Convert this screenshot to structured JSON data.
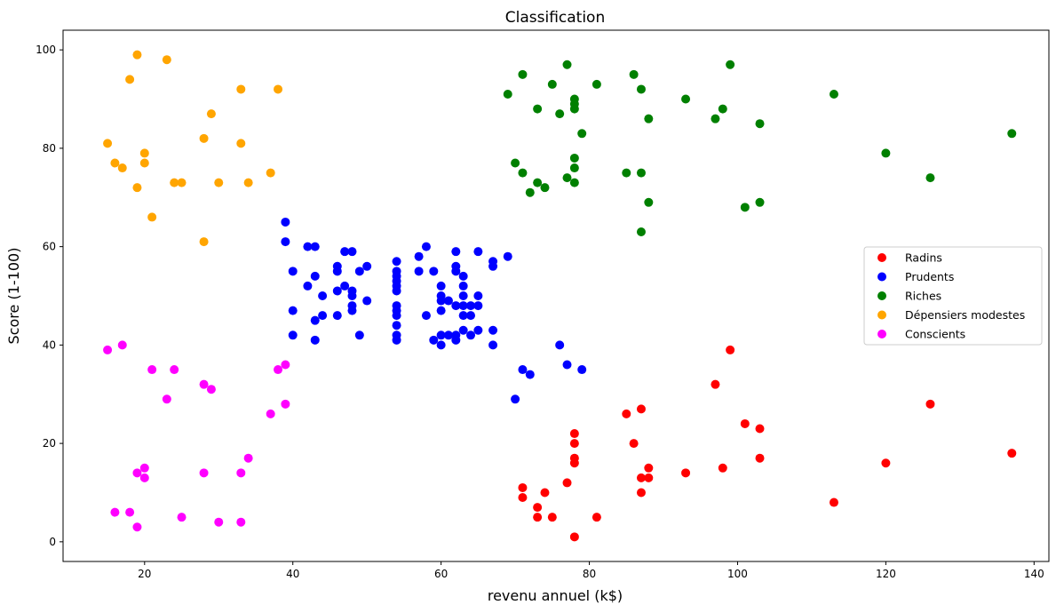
{
  "chart_data": {
    "type": "scatter",
    "title": "Classification",
    "xlabel": "revenu annuel (k$)",
    "ylabel": "Score (1-100)",
    "xlim": [
      9,
      142
    ],
    "ylim": [
      -4,
      104
    ],
    "xticks": [
      20,
      40,
      60,
      80,
      100,
      120,
      140
    ],
    "yticks": [
      0,
      20,
      40,
      60,
      80,
      100
    ],
    "grid": false,
    "legend": "center-right",
    "series": [
      {
        "name": "Radins",
        "color": "#ff0000",
        "points": [
          [
            71,
            11
          ],
          [
            71,
            9
          ],
          [
            73,
            5
          ],
          [
            73,
            7
          ],
          [
            74,
            10
          ],
          [
            75,
            5
          ],
          [
            77,
            12
          ],
          [
            78,
            22
          ],
          [
            78,
            20
          ],
          [
            78,
            17
          ],
          [
            78,
            16
          ],
          [
            78,
            1
          ],
          [
            81,
            5
          ],
          [
            85,
            26
          ],
          [
            86,
            20
          ],
          [
            87,
            27
          ],
          [
            87,
            13
          ],
          [
            87,
            10
          ],
          [
            88,
            13
          ],
          [
            88,
            15
          ],
          [
            93,
            14
          ],
          [
            97,
            32
          ],
          [
            98,
            15
          ],
          [
            99,
            39
          ],
          [
            101,
            24
          ],
          [
            103,
            23
          ],
          [
            103,
            17
          ],
          [
            113,
            8
          ],
          [
            120,
            16
          ],
          [
            126,
            28
          ],
          [
            137,
            18
          ]
        ]
      },
      {
        "name": "Prudents",
        "color": "#0000ff",
        "points": [
          [
            39,
            65
          ],
          [
            39,
            61
          ],
          [
            40,
            55
          ],
          [
            40,
            47
          ],
          [
            40,
            42
          ],
          [
            42,
            60
          ],
          [
            42,
            52
          ],
          [
            43,
            60
          ],
          [
            43,
            54
          ],
          [
            43,
            45
          ],
          [
            43,
            41
          ],
          [
            44,
            50
          ],
          [
            44,
            46
          ],
          [
            46,
            56
          ],
          [
            46,
            55
          ],
          [
            46,
            51
          ],
          [
            46,
            46
          ],
          [
            47,
            59
          ],
          [
            47,
            52
          ],
          [
            48,
            59
          ],
          [
            48,
            51
          ],
          [
            48,
            50
          ],
          [
            48,
            48
          ],
          [
            48,
            47
          ],
          [
            49,
            55
          ],
          [
            49,
            42
          ],
          [
            50,
            56
          ],
          [
            50,
            49
          ],
          [
            54,
            57
          ],
          [
            54,
            55
          ],
          [
            54,
            54
          ],
          [
            54,
            53
          ],
          [
            54,
            52
          ],
          [
            54,
            51
          ],
          [
            54,
            48
          ],
          [
            54,
            47
          ],
          [
            54,
            46
          ],
          [
            54,
            44
          ],
          [
            54,
            42
          ],
          [
            54,
            41
          ],
          [
            57,
            58
          ],
          [
            57,
            55
          ],
          [
            58,
            60
          ],
          [
            58,
            46
          ],
          [
            59,
            55
          ],
          [
            59,
            41
          ],
          [
            60,
            52
          ],
          [
            60,
            50
          ],
          [
            60,
            49
          ],
          [
            60,
            47
          ],
          [
            60,
            42
          ],
          [
            60,
            40
          ],
          [
            61,
            49
          ],
          [
            61,
            42
          ],
          [
            62,
            59
          ],
          [
            62,
            56
          ],
          [
            62,
            55
          ],
          [
            62,
            48
          ],
          [
            62,
            42
          ],
          [
            62,
            41
          ],
          [
            63,
            54
          ],
          [
            63,
            52
          ],
          [
            63,
            50
          ],
          [
            63,
            48
          ],
          [
            63,
            46
          ],
          [
            63,
            43
          ],
          [
            64,
            48
          ],
          [
            64,
            46
          ],
          [
            64,
            42
          ],
          [
            65,
            59
          ],
          [
            65,
            50
          ],
          [
            65,
            48
          ],
          [
            65,
            43
          ],
          [
            67,
            57
          ],
          [
            67,
            56
          ],
          [
            67,
            43
          ],
          [
            67,
            40
          ],
          [
            69,
            58
          ],
          [
            70,
            29
          ],
          [
            71,
            35
          ],
          [
            72,
            34
          ],
          [
            76,
            40
          ],
          [
            77,
            36
          ],
          [
            79,
            35
          ]
        ]
      },
      {
        "name": "Riches",
        "color": "#008000",
        "points": [
          [
            69,
            91
          ],
          [
            70,
            77
          ],
          [
            71,
            95
          ],
          [
            71,
            75
          ],
          [
            72,
            71
          ],
          [
            73,
            88
          ],
          [
            73,
            73
          ],
          [
            74,
            72
          ],
          [
            75,
            93
          ],
          [
            76,
            87
          ],
          [
            77,
            97
          ],
          [
            77,
            74
          ],
          [
            78,
            90
          ],
          [
            78,
            89
          ],
          [
            78,
            88
          ],
          [
            78,
            78
          ],
          [
            78,
            76
          ],
          [
            78,
            73
          ],
          [
            79,
            83
          ],
          [
            81,
            93
          ],
          [
            85,
            75
          ],
          [
            86,
            95
          ],
          [
            87,
            92
          ],
          [
            87,
            75
          ],
          [
            87,
            63
          ],
          [
            88,
            86
          ],
          [
            88,
            69
          ],
          [
            93,
            90
          ],
          [
            97,
            86
          ],
          [
            98,
            88
          ],
          [
            99,
            97
          ],
          [
            101,
            68
          ],
          [
            103,
            85
          ],
          [
            103,
            69
          ],
          [
            113,
            91
          ],
          [
            120,
            79
          ],
          [
            126,
            74
          ],
          [
            137,
            83
          ]
        ]
      },
      {
        "name": "Dépensiers modestes",
        "color": "#ffa500",
        "points": [
          [
            15,
            81
          ],
          [
            16,
            77
          ],
          [
            17,
            76
          ],
          [
            18,
            94
          ],
          [
            19,
            99
          ],
          [
            19,
            72
          ],
          [
            20,
            79
          ],
          [
            20,
            77
          ],
          [
            21,
            66
          ],
          [
            23,
            98
          ],
          [
            24,
            73
          ],
          [
            25,
            73
          ],
          [
            28,
            82
          ],
          [
            28,
            61
          ],
          [
            29,
            87
          ],
          [
            30,
            73
          ],
          [
            33,
            92
          ],
          [
            33,
            81
          ],
          [
            34,
            73
          ],
          [
            37,
            75
          ],
          [
            38,
            92
          ]
        ]
      },
      {
        "name": "Conscients",
        "color": "#ff00ff",
        "points": [
          [
            15,
            39
          ],
          [
            16,
            6
          ],
          [
            17,
            40
          ],
          [
            18,
            6
          ],
          [
            19,
            3
          ],
          [
            19,
            14
          ],
          [
            20,
            15
          ],
          [
            20,
            13
          ],
          [
            21,
            35
          ],
          [
            23,
            29
          ],
          [
            24,
            35
          ],
          [
            25,
            5
          ],
          [
            28,
            32
          ],
          [
            28,
            14
          ],
          [
            29,
            31
          ],
          [
            30,
            4
          ],
          [
            33,
            4
          ],
          [
            33,
            14
          ],
          [
            34,
            17
          ],
          [
            37,
            26
          ],
          [
            38,
            35
          ],
          [
            39,
            36
          ],
          [
            39,
            28
          ]
        ]
      }
    ]
  }
}
